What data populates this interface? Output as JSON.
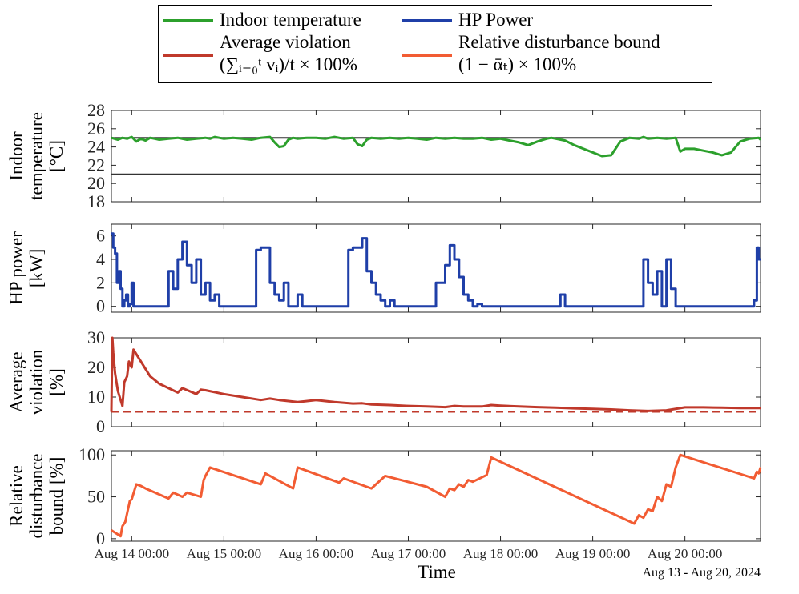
{
  "legend": {
    "items": [
      {
        "label_lines": [
          "Indoor temperature"
        ],
        "color": "#2ca02c"
      },
      {
        "label_lines": [
          "HP Power"
        ],
        "color": "#1f3fa8"
      },
      {
        "label_lines": [
          "Average violation",
          "(∑ᵢ₌₀ᵗ vᵢ)/t × 100%"
        ],
        "color": "#c0392b"
      },
      {
        "label_lines": [
          "Relative disturbance bound",
          "(1 − ᾱₜ) × 100%"
        ],
        "color": "#f25c33"
      }
    ]
  },
  "x_axis": {
    "label": "Time",
    "range_days": [
      13.78,
      20.82
    ],
    "ticks": [
      {
        "label": "Aug 14 00:00",
        "value": 14
      },
      {
        "label": "Aug 15 00:00",
        "value": 15
      },
      {
        "label": "Aug 16 00:00",
        "value": 16
      },
      {
        "label": "Aug 17 00:00",
        "value": 17
      },
      {
        "label": "Aug 18 00:00",
        "value": 18
      },
      {
        "label": "Aug 19 00:00",
        "value": 19
      },
      {
        "label": "Aug 20 00:00",
        "value": 20
      }
    ],
    "date_range_note": "Aug 13 - Aug 20, 2024"
  },
  "chart_data": [
    {
      "type": "line",
      "ylabel_lines": [
        "Indoor",
        "temperature",
        "[°C]"
      ],
      "ylim": [
        18,
        28
      ],
      "yticks": [
        18,
        20,
        22,
        24,
        26,
        28
      ],
      "reference_lines": [
        {
          "y": 25,
          "color": "#333333",
          "style": "solid"
        },
        {
          "y": 21,
          "color": "#333333",
          "style": "solid"
        }
      ],
      "series": [
        {
          "color": "#2ca02c",
          "x": [
            13.78,
            13.85,
            13.9,
            13.95,
            14.0,
            14.05,
            14.1,
            14.15,
            14.2,
            14.25,
            14.3,
            14.4,
            14.5,
            14.6,
            14.7,
            14.8,
            14.85,
            14.9,
            15.0,
            15.1,
            15.2,
            15.3,
            15.4,
            15.5,
            15.55,
            15.6,
            15.65,
            15.7,
            15.75,
            15.8,
            15.9,
            16.0,
            16.1,
            16.2,
            16.3,
            16.4,
            16.45,
            16.5,
            16.55,
            16.6,
            16.7,
            16.8,
            16.9,
            17.0,
            17.1,
            17.2,
            17.3,
            17.4,
            17.5,
            17.6,
            17.7,
            17.8,
            17.9,
            18.0,
            18.1,
            18.2,
            18.3,
            18.4,
            18.5,
            18.55,
            18.6,
            18.7,
            18.8,
            18.9,
            19.0,
            19.1,
            19.2,
            19.3,
            19.4,
            19.5,
            19.55,
            19.6,
            19.7,
            19.8,
            19.9,
            19.95,
            20.0,
            20.1,
            20.2,
            20.3,
            20.4,
            20.5,
            20.6,
            20.7,
            20.8,
            20.82
          ],
          "y": [
            25.0,
            24.8,
            25.0,
            24.9,
            25.1,
            24.6,
            24.9,
            24.7,
            25.0,
            24.9,
            24.8,
            24.9,
            25.0,
            24.8,
            24.9,
            25.0,
            24.9,
            25.1,
            24.9,
            25.0,
            24.9,
            24.8,
            25.0,
            25.1,
            24.5,
            24.0,
            24.1,
            24.8,
            25.0,
            24.9,
            25.0,
            25.0,
            24.9,
            25.1,
            24.9,
            25.0,
            24.3,
            24.1,
            24.8,
            25.0,
            24.9,
            25.0,
            24.9,
            25.0,
            24.9,
            24.8,
            25.0,
            24.9,
            25.0,
            24.9,
            24.9,
            25.0,
            24.8,
            24.9,
            24.7,
            24.5,
            24.2,
            24.6,
            24.9,
            25.0,
            24.9,
            24.7,
            24.2,
            23.8,
            23.4,
            23.0,
            23.1,
            24.6,
            25.0,
            24.9,
            25.1,
            24.9,
            25.0,
            24.9,
            25.0,
            23.5,
            23.8,
            23.8,
            23.6,
            23.4,
            23.1,
            23.4,
            24.6,
            24.9,
            25.0,
            24.8
          ]
        }
      ]
    },
    {
      "type": "line",
      "ylabel_lines": [
        "HP power",
        "[kW]"
      ],
      "ylim": [
        -0.5,
        7
      ],
      "yticks": [
        0,
        2,
        4,
        6
      ],
      "series": [
        {
          "color": "#1f3fa8",
          "style": "step",
          "x": [
            13.78,
            13.8,
            13.82,
            13.84,
            13.86,
            13.88,
            13.9,
            13.92,
            13.94,
            13.96,
            13.98,
            14.0,
            14.02,
            14.05,
            14.1,
            14.15,
            14.2,
            14.3,
            14.4,
            14.45,
            14.5,
            14.55,
            14.6,
            14.65,
            14.7,
            14.75,
            14.8,
            14.85,
            14.9,
            14.95,
            15.0,
            15.1,
            15.2,
            15.35,
            15.4,
            15.5,
            15.55,
            15.6,
            15.65,
            15.7,
            15.75,
            15.8,
            15.85,
            15.9,
            16.0,
            16.1,
            16.2,
            16.35,
            16.4,
            16.5,
            16.55,
            16.6,
            16.65,
            16.7,
            16.75,
            16.8,
            16.85,
            16.9,
            17.0,
            17.1,
            17.2,
            17.3,
            17.4,
            17.45,
            17.5,
            17.55,
            17.6,
            17.65,
            17.7,
            17.75,
            17.8,
            17.85,
            17.9,
            17.95,
            18.0,
            18.1,
            18.2,
            18.5,
            18.6,
            18.65,
            18.7,
            19.0,
            19.5,
            19.55,
            19.6,
            19.65,
            19.7,
            19.75,
            19.8,
            19.85,
            19.9,
            19.95,
            20.0,
            20.5,
            20.6,
            20.7,
            20.75,
            20.78,
            20.8,
            20.82
          ],
          "y": [
            6.2,
            5.0,
            4.5,
            2.0,
            3.0,
            1.5,
            0.0,
            0.5,
            1.0,
            0.0,
            0.2,
            2.0,
            0.0,
            0.0,
            0.0,
            0.0,
            0.0,
            0.0,
            3.0,
            1.5,
            4.0,
            5.5,
            3.5,
            2.0,
            4.0,
            1.0,
            2.0,
            0.5,
            1.0,
            0.0,
            0.0,
            0.0,
            0.0,
            4.8,
            5.0,
            2.0,
            1.0,
            0.5,
            2.0,
            0.0,
            0.0,
            1.0,
            0.0,
            0.0,
            0.0,
            0.0,
            0.0,
            4.8,
            5.0,
            5.8,
            3.0,
            2.0,
            1.0,
            0.5,
            0.0,
            0.5,
            0.0,
            0.0,
            0.0,
            0.0,
            0.0,
            2.0,
            3.5,
            5.2,
            4.0,
            2.5,
            1.0,
            0.5,
            0.0,
            0.2,
            0.0,
            0.0,
            0.0,
            0.0,
            0.0,
            0.0,
            0.0,
            0.0,
            0.0,
            1.0,
            0.0,
            0.0,
            0.0,
            4.0,
            2.0,
            1.0,
            3.0,
            0.0,
            4.0,
            1.5,
            0.0,
            0.0,
            0.0,
            0.0,
            0.0,
            0.0,
            0.5,
            5.0,
            4.0,
            4.0
          ]
        }
      ]
    },
    {
      "type": "line",
      "ylabel_lines": [
        "Average",
        "violation",
        "[%]"
      ],
      "ylim": [
        0,
        30
      ],
      "yticks": [
        0,
        10,
        20,
        30
      ],
      "reference_lines": [
        {
          "y": 5,
          "color": "#c0392b",
          "style": "dashed"
        }
      ],
      "series": [
        {
          "color": "#c0392b",
          "x": [
            13.78,
            13.79,
            13.8,
            13.82,
            13.85,
            13.9,
            13.92,
            13.95,
            13.97,
            14.0,
            14.02,
            14.1,
            14.2,
            14.3,
            14.4,
            14.5,
            14.55,
            14.7,
            14.75,
            14.8,
            15.0,
            15.2,
            15.4,
            15.5,
            15.6,
            15.8,
            16.0,
            16.2,
            16.4,
            16.5,
            16.6,
            16.8,
            17.0,
            17.2,
            17.4,
            17.5,
            17.6,
            17.8,
            17.9,
            18.0,
            18.2,
            18.4,
            18.6,
            18.8,
            19.0,
            19.2,
            19.4,
            19.6,
            19.8,
            20.0,
            20.2,
            20.4,
            20.6,
            20.82
          ],
          "y": [
            5.0,
            30.0,
            25.0,
            18.0,
            12.0,
            7.0,
            15.0,
            17.0,
            22.0,
            20.0,
            26.0,
            22.0,
            17.0,
            14.5,
            13.0,
            11.5,
            13.0,
            11.0,
            12.5,
            12.3,
            11.0,
            10.0,
            9.0,
            9.5,
            9.0,
            8.3,
            9.0,
            8.3,
            7.8,
            7.9,
            7.5,
            7.3,
            7.0,
            6.8,
            6.6,
            7.0,
            6.8,
            6.8,
            7.3,
            7.1,
            6.8,
            6.6,
            6.4,
            6.2,
            6.0,
            5.8,
            5.5,
            5.3,
            5.5,
            6.5,
            6.5,
            6.4,
            6.3,
            6.3
          ]
        }
      ]
    },
    {
      "type": "line",
      "ylabel_lines": [
        "Relative",
        "disturbance",
        "bound [%]"
      ],
      "ylim": [
        -3,
        105
      ],
      "yticks": [
        0,
        50,
        100
      ],
      "series": [
        {
          "color": "#f25c33",
          "x": [
            13.78,
            13.88,
            13.9,
            13.93,
            13.96,
            13.98,
            14.0,
            14.05,
            14.1,
            14.15,
            14.4,
            14.45,
            14.55,
            14.6,
            14.75,
            14.78,
            14.8,
            14.85,
            15.4,
            15.45,
            15.5,
            15.75,
            15.8,
            16.25,
            16.3,
            16.6,
            16.65,
            16.7,
            16.75,
            17.2,
            17.4,
            17.45,
            17.5,
            17.55,
            17.6,
            17.65,
            17.7,
            17.85,
            17.9,
            19.45,
            19.5,
            19.55,
            19.6,
            19.65,
            19.7,
            19.75,
            19.8,
            19.85,
            19.9,
            19.95,
            20.75,
            20.78,
            20.8,
            20.82
          ],
          "y": [
            10.0,
            3.0,
            15.0,
            20.0,
            35.0,
            45.0,
            47.0,
            65.0,
            63.0,
            60.0,
            48.0,
            55.0,
            50.0,
            55.0,
            50.0,
            70.0,
            75.0,
            85.0,
            65.0,
            78.0,
            75.0,
            60.0,
            85.0,
            67.0,
            72.0,
            60.0,
            65.0,
            70.0,
            75.0,
            62.0,
            50.0,
            60.0,
            58.0,
            65.0,
            62.0,
            70.0,
            68.0,
            76.0,
            97.0,
            18.0,
            28.0,
            25.0,
            35.0,
            33.0,
            50.0,
            45.0,
            65.0,
            62.0,
            85.0,
            100.0,
            72.0,
            80.0,
            78.0,
            85.0
          ]
        }
      ]
    }
  ]
}
